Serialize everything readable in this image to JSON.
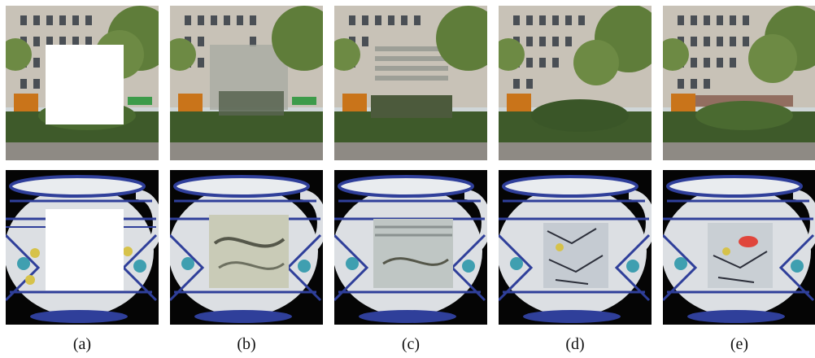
{
  "figure": {
    "captions": [
      "(a)",
      "(b)",
      "(c)",
      "(d)",
      "(e)"
    ],
    "rows": [
      {
        "subject": "street-scene",
        "description": "building facade with trees and hedge"
      },
      {
        "subject": "ceramic-jug",
        "description": "patterned blue-and-yellow ceramic pitcher on black background"
      }
    ]
  },
  "colors": {
    "sky": "#cfd6d8",
    "facade": "#c8c2b7",
    "window": "#4a4f55",
    "tree": "#5f7d3a",
    "hedge": "#3e5a2a",
    "pavement": "#8e8a84",
    "jug_body": "#dcdfe3",
    "jug_blue": "#2f3f9a",
    "jug_yellow": "#d6c24a",
    "jug_teal": "#3f9fb0",
    "background_dark": "#050505",
    "mask": "#ffffff"
  }
}
